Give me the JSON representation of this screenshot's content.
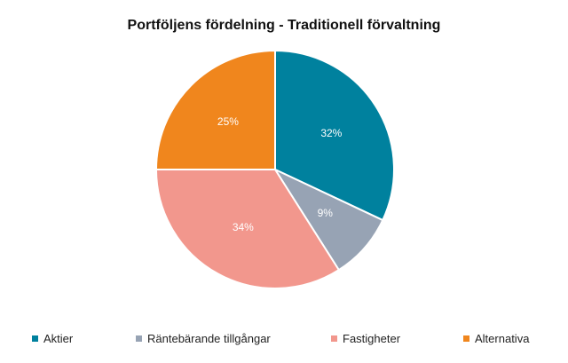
{
  "chart_data": {
    "type": "pie",
    "title": "Portföljens fördelning - Traditionell förvaltning",
    "slices": [
      {
        "label": "Aktier",
        "value": 32,
        "value_label": "32%",
        "color": "#00819e"
      },
      {
        "label": "Räntebärande tillgångar",
        "value": 9,
        "value_label": "9%",
        "color": "#97a3b4"
      },
      {
        "label": "Fastigheter",
        "value": 34,
        "value_label": "34%",
        "color": "#f2978d"
      },
      {
        "label": "Alternativa",
        "value": 25,
        "value_label": "25%",
        "color": "#f0861d"
      }
    ],
    "start_angle": "12 o'clock",
    "direction": "clockwise",
    "legend_position": "bottom"
  }
}
